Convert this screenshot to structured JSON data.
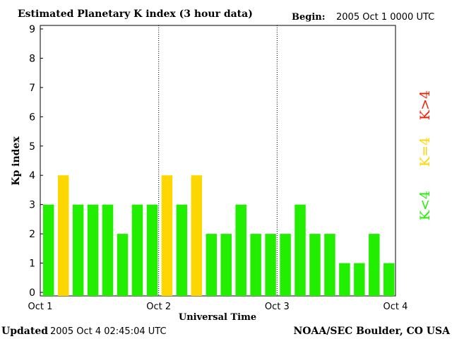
{
  "header": {
    "title": "Estimated Planetary K index (3 hour data)",
    "begin_label": "Begin:",
    "begin_value": "2005 Oct 1 0000 UTC"
  },
  "footer": {
    "updated_label": "Updated",
    "updated_value": "2005 Oct  4 02:45:04 UTC",
    "source": "NOAA/SEC Boulder, CO USA"
  },
  "legend": {
    "above": "K>4",
    "equal": "K=4",
    "below": "K<4"
  },
  "colors": {
    "below": "#22ee00",
    "equal": "#ffd700",
    "above": "#ee2200"
  },
  "chart_data": {
    "type": "bar",
    "title": "Estimated Planetary K index (3 hour data)",
    "xlabel": "Universal Time",
    "ylabel": "Kp index",
    "ylim": [
      0,
      9
    ],
    "yticks": [
      "0",
      "1",
      "2",
      "3",
      "4",
      "5",
      "6",
      "7",
      "8",
      "9"
    ],
    "xticks": [
      "Oct 1",
      "Oct 2",
      "Oct 3",
      "Oct 4"
    ],
    "bars_per_day": 8,
    "values": [
      3,
      4,
      3,
      3,
      3,
      2,
      3,
      3,
      4,
      3,
      4,
      2,
      2,
      3,
      2,
      2,
      2,
      3,
      2,
      2,
      1,
      1,
      2,
      1
    ]
  }
}
